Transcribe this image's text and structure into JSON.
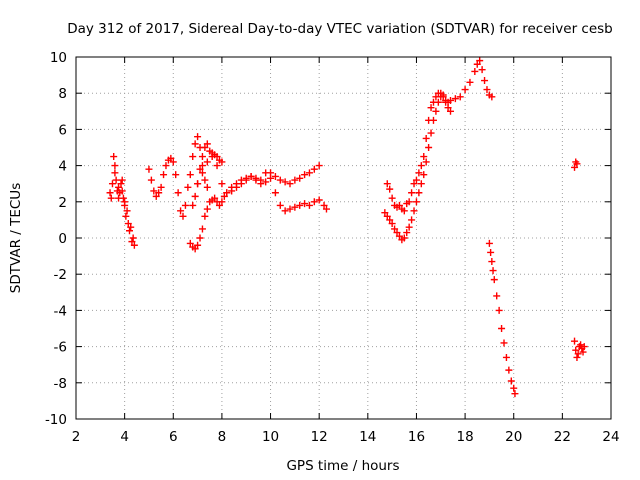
{
  "chart_data": {
    "type": "scatter",
    "title": "Day 312 of 2017, Sidereal Day-to-day VTEC variation (SDTVAR) for receiver cesb",
    "xlabel": "GPS time / hours",
    "ylabel": "SDTVAR / TECUs",
    "xlim": [
      2,
      24
    ],
    "ylim": [
      -10,
      10
    ],
    "xticks": [
      2,
      4,
      6,
      8,
      10,
      12,
      14,
      16,
      18,
      20,
      22,
      24
    ],
    "yticks": [
      -10,
      -8,
      -6,
      -4,
      -2,
      0,
      2,
      4,
      6,
      8,
      10
    ],
    "grid": true,
    "marker": "+",
    "marker_color": "#ff0000",
    "series": [
      {
        "name": "SDTVAR",
        "x": [
          3.4,
          3.5,
          3.55,
          3.6,
          3.65,
          3.7,
          3.75,
          3.8,
          3.85,
          3.9,
          3.95,
          4.0,
          4.05,
          4.1,
          4.15,
          4.2,
          4.25,
          4.3,
          4.35,
          4.4,
          3.45,
          3.6,
          3.75,
          3.9,
          4.0,
          5.0,
          5.1,
          5.2,
          5.3,
          5.4,
          5.5,
          5.6,
          5.7,
          5.8,
          5.9,
          6.0,
          6.1,
          6.2,
          6.3,
          6.4,
          6.5,
          6.6,
          6.7,
          6.8,
          6.9,
          7.0,
          7.1,
          7.2,
          7.3,
          7.4,
          6.7,
          6.8,
          6.9,
          7.0,
          7.1,
          7.2,
          7.3,
          7.4,
          7.5,
          7.6,
          7.7,
          7.8,
          7.9,
          8.0,
          8.1,
          8.2,
          8.4,
          8.6,
          8.8,
          9.0,
          9.2,
          9.4,
          9.6,
          9.8,
          10.0,
          10.2,
          10.4,
          10.6,
          10.8,
          11.0,
          11.2,
          11.4,
          11.6,
          11.8,
          12.0,
          7.0,
          7.2,
          7.4,
          7.6,
          7.8,
          8.0,
          8.2,
          8.4,
          8.6,
          8.8,
          9.0,
          9.2,
          9.4,
          9.6,
          9.8,
          10.0,
          10.2,
          10.4,
          10.6,
          10.8,
          11.0,
          11.2,
          11.4,
          11.6,
          11.8,
          12.0,
          12.2,
          12.3,
          6.8,
          6.9,
          7.0,
          7.1,
          7.2,
          7.3,
          7.4,
          7.5,
          7.6,
          7.7,
          7.8,
          7.9,
          8.0,
          14.8,
          14.9,
          15.0,
          15.1,
          15.2,
          15.3,
          15.4,
          15.5,
          15.6,
          15.7,
          15.8,
          15.9,
          16.0,
          16.1,
          16.2,
          16.3,
          16.4,
          16.5,
          16.6,
          16.7,
          16.8,
          16.9,
          17.0,
          17.1,
          17.2,
          17.3,
          17.4,
          17.6,
          17.8,
          18.0,
          18.2,
          18.4,
          18.5,
          18.6,
          18.7,
          18.8,
          18.9,
          19.0,
          19.1,
          14.7,
          14.8,
          14.9,
          15.0,
          15.1,
          15.2,
          15.3,
          15.4,
          15.5,
          15.6,
          15.7,
          15.8,
          15.9,
          16.0,
          16.1,
          16.2,
          16.3,
          16.4,
          16.5,
          16.6,
          16.7,
          16.8,
          16.9,
          17.0,
          17.1,
          17.2,
          17.3,
          17.4,
          19.0,
          19.05,
          19.1,
          19.15,
          19.2,
          19.3,
          19.4,
          19.5,
          19.6,
          19.7,
          19.8,
          19.9,
          20.0,
          20.05,
          22.5,
          22.55,
          22.6,
          22.5,
          22.55,
          22.6,
          22.65,
          22.7,
          22.75,
          22.8,
          22.85,
          22.9
        ],
        "y": [
          2.5,
          3.0,
          4.5,
          4.0,
          3.2,
          2.6,
          2.2,
          2.5,
          3.0,
          2.6,
          2.2,
          1.8,
          1.2,
          1.5,
          0.8,
          0.4,
          0.6,
          -0.2,
          0.0,
          -0.4,
          2.2,
          3.6,
          2.8,
          3.2,
          2.0,
          3.8,
          3.2,
          2.6,
          2.3,
          2.5,
          2.8,
          3.5,
          4.0,
          4.3,
          4.4,
          4.2,
          3.5,
          2.5,
          1.5,
          1.2,
          1.8,
          2.8,
          3.5,
          4.5,
          5.2,
          5.6,
          5.0,
          4.0,
          3.2,
          2.8,
          -0.3,
          -0.5,
          -0.6,
          -0.4,
          0.0,
          0.5,
          1.2,
          1.6,
          2.0,
          2.1,
          2.2,
          2.0,
          1.8,
          2.0,
          2.3,
          2.5,
          2.8,
          3.0,
          3.2,
          3.3,
          3.4,
          3.3,
          3.2,
          3.1,
          3.6,
          3.4,
          3.2,
          3.1,
          3.0,
          3.2,
          3.3,
          3.5,
          3.6,
          3.8,
          4.0,
          3.0,
          3.6,
          4.2,
          4.7,
          4.0,
          3.0,
          2.5,
          2.6,
          2.8,
          3.0,
          3.2,
          3.4,
          3.2,
          3.0,
          3.6,
          3.3,
          2.5,
          1.8,
          1.5,
          1.6,
          1.7,
          1.8,
          1.9,
          1.8,
          2.0,
          2.1,
          1.8,
          1.6,
          1.8,
          2.3,
          3.0,
          3.8,
          4.5,
          5.0,
          5.2,
          4.8,
          4.5,
          4.6,
          4.5,
          4.3,
          4.2,
          3.0,
          2.7,
          2.2,
          1.8,
          1.7,
          1.8,
          1.6,
          1.5,
          1.9,
          2.0,
          2.5,
          3.0,
          3.2,
          3.6,
          4.0,
          4.5,
          5.5,
          6.5,
          7.2,
          7.5,
          7.8,
          8.0,
          8.0,
          7.8,
          7.6,
          7.5,
          7.6,
          7.7,
          7.8,
          8.2,
          8.6,
          9.2,
          9.6,
          9.8,
          9.3,
          8.7,
          8.2,
          7.9,
          7.8,
          1.4,
          1.2,
          1.0,
          0.8,
          0.5,
          0.3,
          0.1,
          -0.1,
          0.0,
          0.3,
          0.6,
          1.0,
          1.5,
          2.0,
          2.5,
          3.0,
          3.5,
          4.2,
          5.0,
          5.8,
          6.5,
          7.0,
          7.5,
          7.8,
          7.9,
          7.5,
          7.2,
          7.0,
          -0.3,
          -0.8,
          -1.3,
          -1.8,
          -2.3,
          -3.2,
          -4.0,
          -5.0,
          -5.8,
          -6.6,
          -7.3,
          -7.9,
          -8.3,
          -8.6,
          3.9,
          4.2,
          4.1,
          -5.7,
          -6.2,
          -6.6,
          -6.4,
          -6.0,
          -5.9,
          -6.1,
          -6.3,
          -6.0
        ]
      }
    ]
  }
}
